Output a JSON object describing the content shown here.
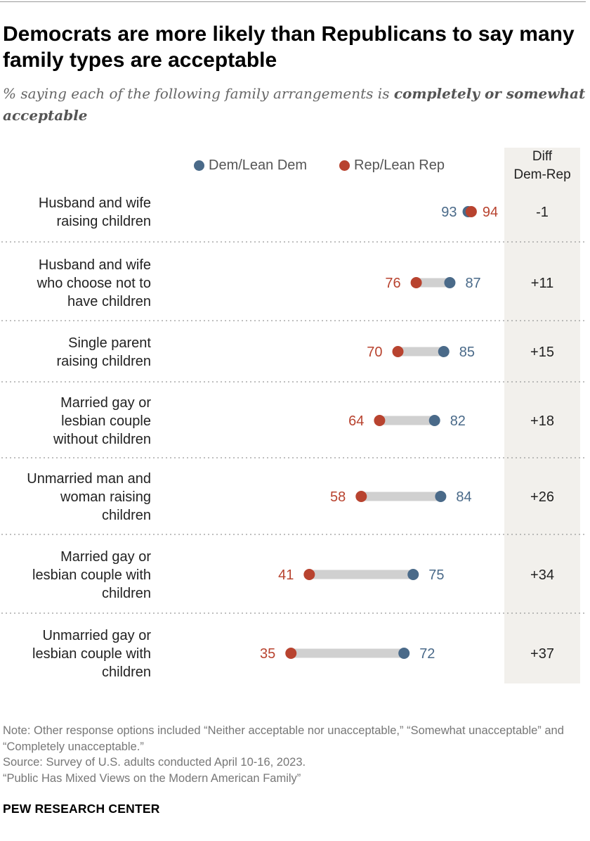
{
  "title": "Democrats are more likely than Republicans to say many family types are acceptable",
  "subtitle_plain": "% saying each of the following family arrangements is ",
  "subtitle_bold": "completely or somewhat acceptable",
  "legend": {
    "dem": "Dem/Lean Dem",
    "rep": "Rep/Lean Rep"
  },
  "diff_header": [
    "Diff",
    "Dem-Rep"
  ],
  "colors": {
    "dem": "#4a6a89",
    "rep": "#b8432f",
    "bar": "#d0d0d0",
    "diff_bg": "#f2f0ec"
  },
  "chart_data": {
    "type": "dot",
    "categories": [
      [
        "Husband and wife",
        "raising children"
      ],
      [
        "Husband and wife",
        "who choose not to",
        "have children"
      ],
      [
        "Single parent",
        "raising children"
      ],
      [
        "Married gay or",
        "lesbian couple",
        "without children"
      ],
      [
        "Unmarried man and",
        "woman raising",
        "children"
      ],
      [
        "Married gay or",
        "lesbian couple with",
        "children"
      ],
      [
        "Unmarried gay or",
        "lesbian couple with",
        "children"
      ]
    ],
    "series": [
      {
        "name": "Dem/Lean Dem",
        "values": [
          93,
          87,
          85,
          82,
          84,
          75,
          72
        ]
      },
      {
        "name": "Rep/Lean Rep",
        "values": [
          94,
          76,
          70,
          64,
          58,
          41,
          35
        ]
      }
    ],
    "diff": [
      "-1",
      "+11",
      "+15",
      "+18",
      "+26",
      "+34",
      "+37"
    ]
  },
  "note": "Note: Other response options included “Neither acceptable nor unacceptable,” “Somewhat unacceptable” and “Completely unacceptable.”",
  "source": "Source: Survey of U.S. adults conducted April 10-16, 2023.",
  "report": "“Public Has Mixed Views on the Modern American Family”",
  "brand": "PEW RESEARCH CENTER"
}
